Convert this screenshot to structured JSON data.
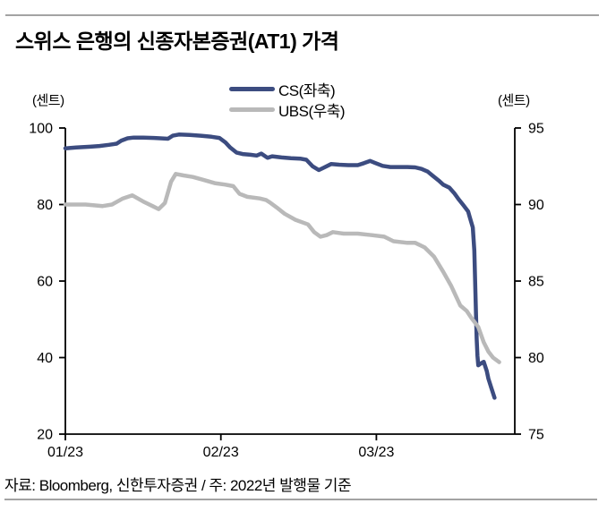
{
  "page": {
    "title": "스위스 은행의 신종자본증권(AT1) 가격",
    "source_note": "자료: Bloomberg, 신한투자증권 / 주: 2022년 발행물 기준"
  },
  "colors": {
    "cs_line": "#3c4c80",
    "ubs_line": "#b9b9b9",
    "axis": "#000000",
    "rule": "#a3a3a3"
  },
  "chart_data": {
    "type": "line",
    "title": "스위스 은행의 신종자본증권(AT1) 가격",
    "left_axis": {
      "unit": "(센트)",
      "min": 20,
      "max": 100,
      "ticks": [
        100,
        80,
        60,
        40,
        20
      ]
    },
    "right_axis": {
      "unit": "(센트)",
      "min": 75,
      "max": 95,
      "ticks": [
        95,
        90,
        85,
        80,
        75
      ]
    },
    "x_axis": {
      "min": 0,
      "max": 2.89,
      "ticks": [
        {
          "pos": 0,
          "label": "01/23"
        },
        {
          "pos": 1,
          "label": "02/23"
        },
        {
          "pos": 2,
          "label": "03/23"
        }
      ]
    },
    "grid": false,
    "legend_position": "top-center",
    "series": [
      {
        "name": "CS(좌축)",
        "axis": "left",
        "color": "#3c4c80",
        "points": [
          [
            0,
            94.7
          ],
          [
            0.07,
            94.9
          ],
          [
            0.16,
            95.1
          ],
          [
            0.22,
            95.3
          ],
          [
            0.28,
            95.6
          ],
          [
            0.33,
            95.9
          ],
          [
            0.36,
            96.7
          ],
          [
            0.4,
            97.3
          ],
          [
            0.44,
            97.5
          ],
          [
            0.5,
            97.5
          ],
          [
            0.57,
            97.4
          ],
          [
            0.61,
            97.3
          ],
          [
            0.66,
            97.2
          ],
          [
            0.69,
            98
          ],
          [
            0.73,
            98.3
          ],
          [
            0.8,
            98.2
          ],
          [
            0.87,
            98
          ],
          [
            0.94,
            97.7
          ],
          [
            0.99,
            97.4
          ],
          [
            1.03,
            96.2
          ],
          [
            1.06,
            94.9
          ],
          [
            1.1,
            93.6
          ],
          [
            1.14,
            93.2
          ],
          [
            1.19,
            93
          ],
          [
            1.23,
            92.8
          ],
          [
            1.26,
            93.3
          ],
          [
            1.3,
            92.2
          ],
          [
            1.33,
            92.6
          ],
          [
            1.39,
            92.3
          ],
          [
            1.45,
            92.1
          ],
          [
            1.51,
            92
          ],
          [
            1.55,
            91.7
          ],
          [
            1.59,
            90
          ],
          [
            1.63,
            89
          ],
          [
            1.66,
            89.6
          ],
          [
            1.71,
            90.6
          ],
          [
            1.76,
            90.4
          ],
          [
            1.82,
            90.3
          ],
          [
            1.88,
            90.3
          ],
          [
            1.92,
            90.8
          ],
          [
            1.96,
            91.4
          ],
          [
            1.99,
            90.9
          ],
          [
            2.04,
            90.1
          ],
          [
            2.09,
            89.8
          ],
          [
            2.14,
            89.8
          ],
          [
            2.2,
            89.8
          ],
          [
            2.25,
            89.7
          ],
          [
            2.29,
            89.3
          ],
          [
            2.33,
            88.6
          ],
          [
            2.36,
            87.6
          ],
          [
            2.4,
            86.3
          ],
          [
            2.43,
            85.2
          ],
          [
            2.47,
            84.4
          ],
          [
            2.5,
            83
          ],
          [
            2.53,
            81.3
          ],
          [
            2.56,
            79.8
          ],
          [
            2.59,
            78.2
          ],
          [
            2.6,
            76.8
          ],
          [
            2.62,
            74
          ],
          [
            2.63,
            68
          ],
          [
            2.635,
            60
          ],
          [
            2.64,
            52
          ],
          [
            2.645,
            45
          ],
          [
            2.65,
            40.5
          ],
          [
            2.655,
            38
          ],
          [
            2.67,
            38.4
          ],
          [
            2.69,
            38.9
          ],
          [
            2.71,
            36.5
          ],
          [
            2.72,
            34.5
          ],
          [
            2.74,
            32
          ],
          [
            2.76,
            29.5
          ]
        ]
      },
      {
        "name": "UBS(우축)",
        "axis": "right",
        "color": "#b9b9b9",
        "points": [
          [
            0,
            90
          ],
          [
            0.13,
            90
          ],
          [
            0.24,
            89.9
          ],
          [
            0.3,
            90
          ],
          [
            0.37,
            90.4
          ],
          [
            0.43,
            90.6
          ],
          [
            0.5,
            90.2
          ],
          [
            0.56,
            89.9
          ],
          [
            0.6,
            89.7
          ],
          [
            0.64,
            90.1
          ],
          [
            0.68,
            91.5
          ],
          [
            0.71,
            92
          ],
          [
            0.76,
            91.9
          ],
          [
            0.82,
            91.8
          ],
          [
            0.89,
            91.6
          ],
          [
            0.96,
            91.4
          ],
          [
            1.03,
            91.3
          ],
          [
            1.08,
            91.2
          ],
          [
            1.12,
            90.7
          ],
          [
            1.17,
            90.5
          ],
          [
            1.25,
            90.4
          ],
          [
            1.29,
            90.3
          ],
          [
            1.32,
            90.1
          ],
          [
            1.36,
            89.8
          ],
          [
            1.41,
            89.4
          ],
          [
            1.48,
            89
          ],
          [
            1.56,
            88.7
          ],
          [
            1.6,
            88.2
          ],
          [
            1.64,
            87.9
          ],
          [
            1.68,
            88
          ],
          [
            1.72,
            88.2
          ],
          [
            1.79,
            88.1
          ],
          [
            1.88,
            88.1
          ],
          [
            1.97,
            88
          ],
          [
            2.05,
            87.9
          ],
          [
            2.11,
            87.6
          ],
          [
            2.2,
            87.5
          ],
          [
            2.25,
            87.5
          ],
          [
            2.31,
            87.2
          ],
          [
            2.37,
            86.6
          ],
          [
            2.43,
            85.6
          ],
          [
            2.48,
            84.7
          ],
          [
            2.54,
            83.4
          ],
          [
            2.58,
            83.05
          ],
          [
            2.61,
            82.6
          ],
          [
            2.655,
            82
          ],
          [
            2.69,
            81
          ],
          [
            2.72,
            80.4
          ],
          [
            2.75,
            80
          ],
          [
            2.79,
            79.7
          ]
        ]
      }
    ]
  }
}
